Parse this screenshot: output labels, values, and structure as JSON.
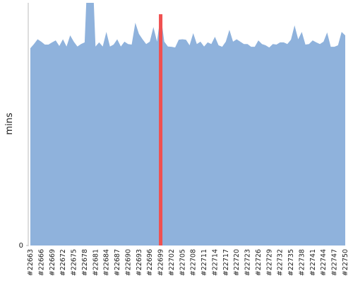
{
  "chart_data": {
    "type": "area",
    "y_label": "mins",
    "categories": [
      "#22663",
      null,
      null,
      "#22666",
      null,
      null,
      "#22669",
      null,
      null,
      "#22672",
      null,
      null,
      "#22675",
      null,
      null,
      "#22678",
      null,
      null,
      "#22681",
      null,
      null,
      "#22684",
      null,
      null,
      "#22687",
      null,
      null,
      "#22690",
      null,
      null,
      "#22693",
      null,
      null,
      "#22696",
      null,
      null,
      "#22699",
      null,
      null,
      "#22702",
      null,
      null,
      "#22705",
      null,
      null,
      "#22708",
      null,
      null,
      "#22711",
      null,
      null,
      "#22714",
      null,
      null,
      "#22717",
      null,
      null,
      "#22720",
      null,
      null,
      "#22723",
      null,
      null,
      "#22726",
      null,
      null,
      "#22729",
      null,
      null,
      "#22732",
      null,
      null,
      "#22735",
      null,
      null,
      "#22738",
      null,
      null,
      "#22741",
      null,
      null,
      "#22744",
      null,
      null,
      "#22747",
      null,
      null,
      "#22750"
    ],
    "values": [
      8.13,
      8.3,
      8.5,
      8.4,
      8.28,
      8.28,
      8.37,
      8.45,
      8.22,
      8.5,
      8.2,
      8.66,
      8.4,
      8.2,
      8.3,
      8.37,
      12,
      12,
      8.2,
      8.37,
      8.2,
      8.8,
      8.2,
      8.28,
      8.5,
      8.2,
      8.4,
      8.3,
      8.28,
      9.18,
      8.72,
      8.5,
      8.3,
      8.4,
      9.0,
      8.4,
      9.53,
      8.4,
      8.2,
      8.19,
      8.16,
      8.48,
      8.5,
      8.48,
      8.25,
      8.75,
      8.3,
      8.4,
      8.2,
      8.37,
      8.3,
      8.6,
      8.25,
      8.19,
      8.4,
      8.89,
      8.4,
      8.5,
      8.4,
      8.3,
      8.3,
      8.19,
      8.19,
      8.45,
      8.3,
      8.25,
      8.16,
      8.3,
      8.28,
      8.37,
      8.37,
      8.3,
      8.48,
      9.07,
      8.5,
      8.8,
      8.28,
      8.3,
      8.45,
      8.37,
      8.3,
      8.4,
      8.78,
      8.19,
      8.19,
      8.25,
      8.8,
      8.66
    ],
    "color": "#8fb2dc",
    "highlight": {
      "category": "#22699",
      "color": "#f05050"
    },
    "ylim": [
      0,
      10
    ],
    "yticks": [
      0
    ]
  }
}
